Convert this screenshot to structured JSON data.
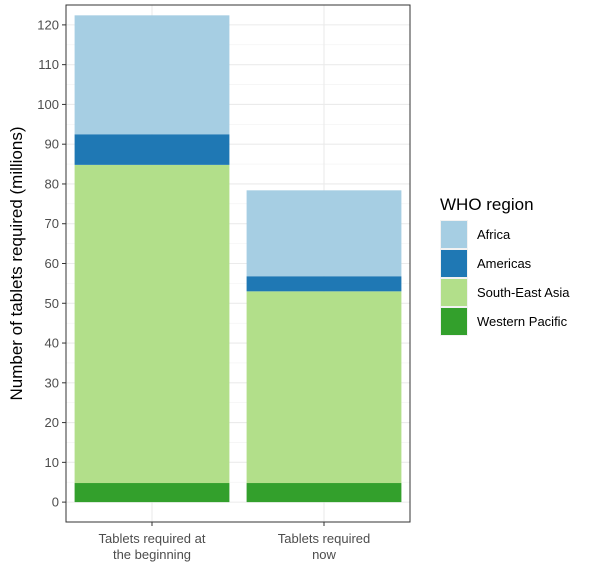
{
  "chart_data": {
    "type": "bar",
    "stacked": true,
    "categories": [
      [
        "Tablets required at",
        "the beginning"
      ],
      [
        "Tablets required",
        "now"
      ]
    ],
    "series": [
      {
        "name": "Western Pacific",
        "color": "#33a02c",
        "values": [
          4.8,
          4.8
        ]
      },
      {
        "name": "South-East Asia",
        "color": "#b2df8a",
        "values": [
          80.0,
          48.2
        ]
      },
      {
        "name": "Americas",
        "color": "#1f78b4",
        "values": [
          7.7,
          3.8
        ]
      },
      {
        "name": "Africa",
        "color": "#a6cee3",
        "values": [
          29.9,
          21.6
        ]
      }
    ],
    "ylabel": "Number of tablets required (millions)",
    "ylim": [
      -5,
      125
    ],
    "yticks": [
      0,
      10,
      20,
      30,
      40,
      50,
      60,
      70,
      80,
      90,
      100,
      110,
      120
    ],
    "grid": true,
    "legend": {
      "title": "WHO region",
      "position": "right",
      "order": [
        "Africa",
        "Americas",
        "South-East Asia",
        "Western Pacific"
      ]
    }
  }
}
